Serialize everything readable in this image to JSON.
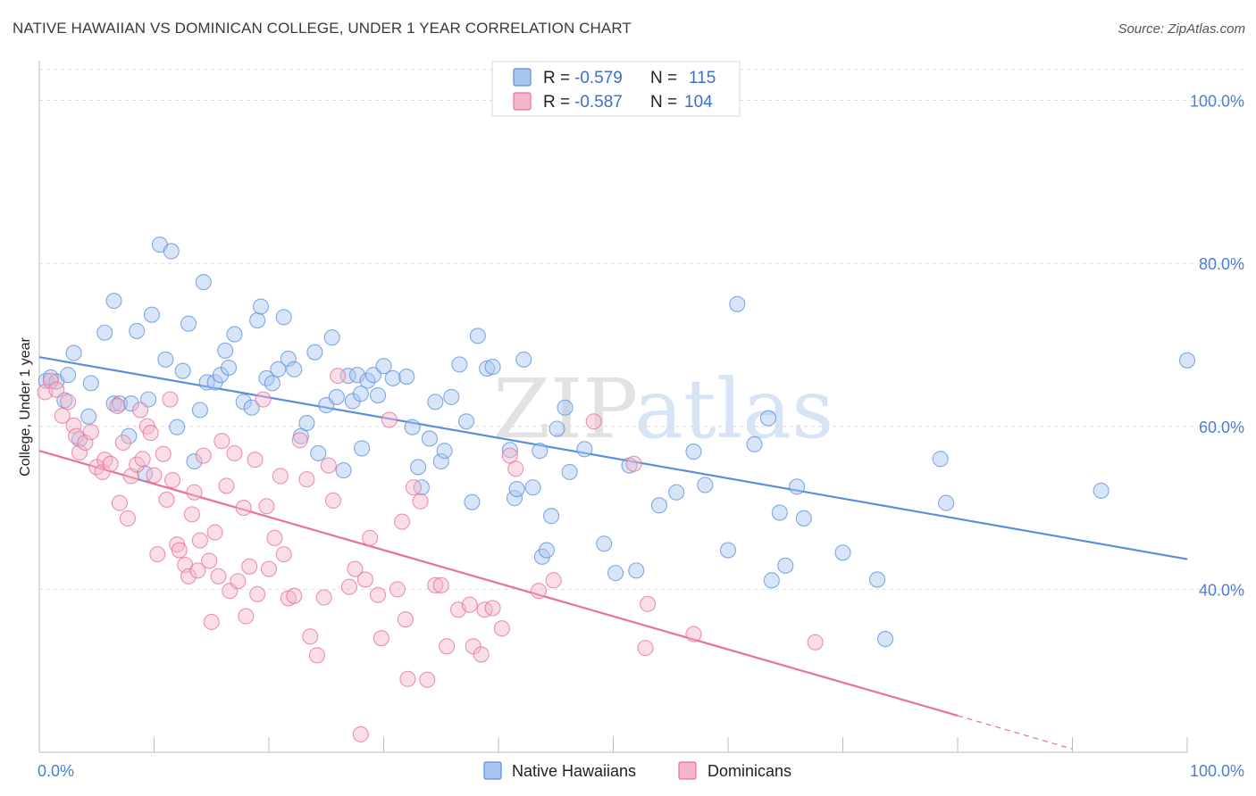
{
  "title": "NATIVE HAWAIIAN VS DOMINICAN COLLEGE, UNDER 1 YEAR CORRELATION CHART",
  "source": "Source: ZipAtlas.com",
  "watermark": {
    "zip": "ZIP",
    "atlas": "atlas"
  },
  "colors": {
    "blue": "#5b8fdb",
    "blue_fill": "#a9c6f0",
    "pink": "#e8709a",
    "pink_fill": "#f4b6ca",
    "grid": "#dcdcdc"
  },
  "legend": {
    "blue": {
      "r_label": "R = ",
      "r": "-0.579",
      "n_label": "N = ",
      "n": "115"
    },
    "pink": {
      "r_label": "R = ",
      "r": "-0.587",
      "n_label": "N = ",
      "n": "104"
    }
  },
  "chart_data": {
    "type": "scatter",
    "title": "NATIVE HAWAIIAN VS DOMINICAN COLLEGE, UNDER 1 YEAR CORRELATION CHART",
    "xlabel": "",
    "ylabel": "College, Under 1 year",
    "xlim": [
      0,
      100
    ],
    "ylim": [
      20,
      104
    ],
    "x_tick_labels": [
      "0.0%",
      "100.0%"
    ],
    "y_tick_labels": [
      "40.0%",
      "60.0%",
      "80.0%",
      "100.0%"
    ],
    "y_ticks": [
      40,
      60,
      80,
      100
    ],
    "grid": true,
    "series": [
      {
        "name": "Native Hawaiians",
        "color": "#5b8fdb",
        "trend": {
          "x": [
            0,
            100
          ],
          "y": [
            68.5,
            43.7
          ]
        },
        "points": [
          [
            0.6,
            65.6
          ],
          [
            1.0,
            66.0
          ],
          [
            1.5,
            65.5
          ],
          [
            2.5,
            66.3
          ],
          [
            3.0,
            69.0
          ],
          [
            4.5,
            65.3
          ],
          [
            2.2,
            63.2
          ],
          [
            4.3,
            61.2
          ],
          [
            3.5,
            58.4
          ],
          [
            5.7,
            71.5
          ],
          [
            6.5,
            75.4
          ],
          [
            6.5,
            62.8
          ],
          [
            7.0,
            62.8
          ],
          [
            8.0,
            62.8
          ],
          [
            7.8,
            58.8
          ],
          [
            8.5,
            71.7
          ],
          [
            9.2,
            54.2
          ],
          [
            9.5,
            63.3
          ],
          [
            9.8,
            73.7
          ],
          [
            10.5,
            82.3
          ],
          [
            11.0,
            68.2
          ],
          [
            11.5,
            81.5
          ],
          [
            12.0,
            59.9
          ],
          [
            12.5,
            66.8
          ],
          [
            13.0,
            72.6
          ],
          [
            13.5,
            55.7
          ],
          [
            14.0,
            62.0
          ],
          [
            14.3,
            77.7
          ],
          [
            14.6,
            65.4
          ],
          [
            15.3,
            65.4
          ],
          [
            15.8,
            66.3
          ],
          [
            16.2,
            69.3
          ],
          [
            16.5,
            67.2
          ],
          [
            17.0,
            71.3
          ],
          [
            17.8,
            63.0
          ],
          [
            18.5,
            62.3
          ],
          [
            19.0,
            73.0
          ],
          [
            19.3,
            74.7
          ],
          [
            19.8,
            65.9
          ],
          [
            20.3,
            65.3
          ],
          [
            20.8,
            67.0
          ],
          [
            21.3,
            73.4
          ],
          [
            21.7,
            68.3
          ],
          [
            22.2,
            67.0
          ],
          [
            22.8,
            58.8
          ],
          [
            23.3,
            60.4
          ],
          [
            24.0,
            69.1
          ],
          [
            24.3,
            56.7
          ],
          [
            25.0,
            62.6
          ],
          [
            25.5,
            70.9
          ],
          [
            25.9,
            63.6
          ],
          [
            26.5,
            54.6
          ],
          [
            26.9,
            66.2
          ],
          [
            27.3,
            63.1
          ],
          [
            27.7,
            66.3
          ],
          [
            28.1,
            57.3
          ],
          [
            28.6,
            65.6
          ],
          [
            29.1,
            66.3
          ],
          [
            29.5,
            63.8
          ],
          [
            30.0,
            67.4
          ],
          [
            30.8,
            65.9
          ],
          [
            32.0,
            66.1
          ],
          [
            32.5,
            59.9
          ],
          [
            33.0,
            55.0
          ],
          [
            33.3,
            52.5
          ],
          [
            34.0,
            58.5
          ],
          [
            34.5,
            63.0
          ],
          [
            35.0,
            55.7
          ],
          [
            35.3,
            57.0
          ],
          [
            35.9,
            63.6
          ],
          [
            36.6,
            67.6
          ],
          [
            37.2,
            60.6
          ],
          [
            37.7,
            50.7
          ],
          [
            38.2,
            71.1
          ],
          [
            39.0,
            67.1
          ],
          [
            39.5,
            67.3
          ],
          [
            41.0,
            57.1
          ],
          [
            41.4,
            51.2
          ],
          [
            41.6,
            52.3
          ],
          [
            42.2,
            68.2
          ],
          [
            43.0,
            52.5
          ],
          [
            43.6,
            57.0
          ],
          [
            43.8,
            44.0
          ],
          [
            44.2,
            44.8
          ],
          [
            44.6,
            49.0
          ],
          [
            45.1,
            59.7
          ],
          [
            45.8,
            62.3
          ],
          [
            46.2,
            54.4
          ],
          [
            47.5,
            57.2
          ],
          [
            49.2,
            45.6
          ],
          [
            50.2,
            42.0
          ],
          [
            51.4,
            55.2
          ],
          [
            52.0,
            42.3
          ],
          [
            54.0,
            50.3
          ],
          [
            55.5,
            51.9
          ],
          [
            57.0,
            56.9
          ],
          [
            58.0,
            52.8
          ],
          [
            60.0,
            44.8
          ],
          [
            60.8,
            75.0
          ],
          [
            62.3,
            57.8
          ],
          [
            63.5,
            61.0
          ],
          [
            63.8,
            41.1
          ],
          [
            64.5,
            49.4
          ],
          [
            65.0,
            42.9
          ],
          [
            66.0,
            52.6
          ],
          [
            66.6,
            48.7
          ],
          [
            70.0,
            44.5
          ],
          [
            73.0,
            41.2
          ],
          [
            73.7,
            33.9
          ],
          [
            78.5,
            56.0
          ],
          [
            79.0,
            50.6
          ],
          [
            92.5,
            52.1
          ],
          [
            100.0,
            68.1
          ],
          [
            28.0,
            64.0
          ]
        ]
      },
      {
        "name": "Dominicans",
        "color": "#e8709a",
        "trend": {
          "x": [
            0,
            80
          ],
          "y": [
            57.0,
            24.5
          ]
        },
        "trend_dashed": {
          "x": [
            80,
            90
          ],
          "y": [
            24.5,
            20.4
          ]
        },
        "points": [
          [
            0.5,
            64.2
          ],
          [
            1.0,
            65.6
          ],
          [
            1.5,
            64.5
          ],
          [
            2.0,
            61.3
          ],
          [
            2.5,
            63.0
          ],
          [
            3.0,
            60.1
          ],
          [
            3.2,
            58.8
          ],
          [
            3.5,
            56.8
          ],
          [
            4.0,
            58.0
          ],
          [
            4.5,
            59.3
          ],
          [
            5.0,
            55.0
          ],
          [
            5.5,
            54.4
          ],
          [
            5.7,
            55.9
          ],
          [
            6.2,
            55.4
          ],
          [
            6.8,
            62.5
          ],
          [
            7.0,
            50.6
          ],
          [
            7.3,
            58.0
          ],
          [
            7.7,
            48.7
          ],
          [
            8.0,
            53.9
          ],
          [
            8.5,
            55.3
          ],
          [
            8.8,
            62.0
          ],
          [
            9.0,
            56.0
          ],
          [
            9.4,
            60.0
          ],
          [
            9.7,
            59.2
          ],
          [
            10.0,
            54.0
          ],
          [
            10.3,
            44.3
          ],
          [
            10.8,
            56.6
          ],
          [
            11.1,
            51.0
          ],
          [
            11.4,
            63.3
          ],
          [
            11.6,
            53.4
          ],
          [
            12.0,
            45.5
          ],
          [
            12.2,
            44.8
          ],
          [
            12.7,
            43.0
          ],
          [
            13.0,
            41.6
          ],
          [
            13.3,
            49.2
          ],
          [
            13.5,
            51.9
          ],
          [
            13.8,
            42.3
          ],
          [
            14.0,
            46.0
          ],
          [
            14.3,
            56.4
          ],
          [
            14.8,
            43.5
          ],
          [
            15.0,
            36.0
          ],
          [
            15.3,
            47.0
          ],
          [
            15.6,
            41.6
          ],
          [
            15.9,
            58.2
          ],
          [
            16.3,
            52.7
          ],
          [
            16.6,
            39.8
          ],
          [
            17.0,
            56.7
          ],
          [
            17.3,
            41.0
          ],
          [
            17.8,
            50.0
          ],
          [
            18.0,
            36.7
          ],
          [
            18.3,
            42.8
          ],
          [
            18.8,
            55.9
          ],
          [
            19.0,
            39.4
          ],
          [
            19.5,
            63.3
          ],
          [
            19.8,
            50.2
          ],
          [
            20.0,
            42.5
          ],
          [
            20.5,
            46.3
          ],
          [
            21.0,
            53.9
          ],
          [
            21.3,
            44.3
          ],
          [
            21.7,
            38.9
          ],
          [
            22.2,
            39.2
          ],
          [
            22.7,
            58.3
          ],
          [
            23.3,
            53.5
          ],
          [
            23.6,
            34.2
          ],
          [
            24.2,
            31.9
          ],
          [
            24.8,
            39.0
          ],
          [
            25.2,
            55.2
          ],
          [
            25.6,
            50.9
          ],
          [
            26.0,
            66.2
          ],
          [
            27.0,
            40.3
          ],
          [
            27.5,
            42.5
          ],
          [
            28.0,
            22.2
          ],
          [
            28.4,
            41.2
          ],
          [
            28.8,
            46.3
          ],
          [
            29.5,
            39.3
          ],
          [
            29.8,
            34.0
          ],
          [
            30.5,
            60.8
          ],
          [
            31.2,
            40.0
          ],
          [
            31.6,
            48.3
          ],
          [
            31.9,
            36.3
          ],
          [
            32.1,
            29.0
          ],
          [
            32.6,
            52.5
          ],
          [
            33.2,
            50.8
          ],
          [
            33.8,
            28.9
          ],
          [
            34.5,
            40.5
          ],
          [
            35.0,
            40.5
          ],
          [
            35.5,
            33.0
          ],
          [
            36.5,
            37.5
          ],
          [
            37.5,
            38.1
          ],
          [
            37.8,
            33.0
          ],
          [
            38.5,
            32.0
          ],
          [
            38.8,
            37.5
          ],
          [
            39.5,
            37.7
          ],
          [
            40.3,
            35.2
          ],
          [
            41.0,
            56.4
          ],
          [
            41.5,
            54.8
          ],
          [
            43.5,
            39.8
          ],
          [
            44.8,
            41.1
          ],
          [
            48.3,
            60.6
          ],
          [
            51.8,
            55.4
          ],
          [
            52.8,
            32.8
          ],
          [
            53.0,
            38.2
          ],
          [
            57.0,
            34.5
          ],
          [
            67.6,
            33.5
          ]
        ]
      }
    ]
  },
  "bottom_legend": [
    {
      "label": "Native Hawaiians",
      "color": "blue"
    },
    {
      "label": "Dominicans",
      "color": "pink"
    }
  ]
}
